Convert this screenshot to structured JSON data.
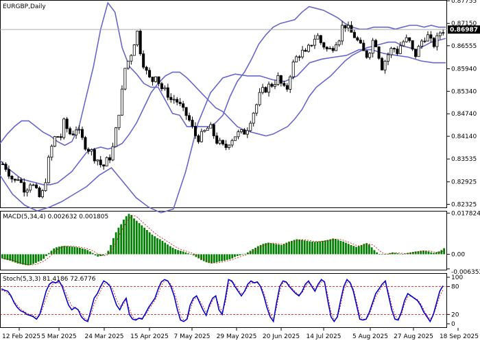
{
  "chart_data": [
    {
      "type": "candlestick",
      "title": "EURGBP,Daily",
      "price_label": "0.86987",
      "ylim": [
        0.82225,
        0.87775
      ],
      "yticks": [
        "0.87755",
        "0.87150",
        "0.86555",
        "0.85940",
        "0.85340",
        "0.84740",
        "0.84140",
        "0.83535",
        "0.82925",
        "0.82325"
      ],
      "xticks": [
        "12 Feb 2025",
        "5 Mar 2025",
        "24 Mar 2025",
        "15 Apr 2025",
        "7 May 2025",
        "29 May 2025",
        "20 Jun 2025",
        "14 Jul 2025",
        "5 Aug 2025",
        "27 Aug 2025",
        "18 Sep 2025"
      ],
      "close_path": [
        0.834,
        0.833,
        0.831,
        0.829,
        0.8305,
        0.8285,
        0.827,
        0.8295,
        0.828,
        0.826,
        0.8245,
        0.829,
        0.835,
        0.8395,
        0.842,
        0.8405,
        0.845,
        0.843,
        0.8415,
        0.844,
        0.842,
        0.84,
        0.8385,
        0.8375,
        0.836,
        0.835,
        0.833,
        0.8345,
        0.836,
        0.839,
        0.846,
        0.852,
        0.86,
        0.862,
        0.865,
        0.87,
        0.864,
        0.86,
        0.857,
        0.856,
        0.8585,
        0.855,
        0.8535,
        0.853,
        0.851,
        0.8515,
        0.85,
        0.848,
        0.847,
        0.845,
        0.842,
        0.841,
        0.8415,
        0.843,
        0.844,
        0.842,
        0.84,
        0.839,
        0.838,
        0.84,
        0.841,
        0.842,
        0.842,
        0.8425,
        0.844,
        0.847,
        0.849,
        0.852,
        0.8535,
        0.8545,
        0.855,
        0.856,
        0.857,
        0.8545,
        0.853,
        0.858,
        0.861,
        0.863,
        0.864,
        0.863,
        0.865,
        0.867,
        0.8685,
        0.8665,
        0.8655,
        0.864,
        0.865,
        0.867,
        0.868,
        0.872,
        0.87,
        0.869,
        0.868,
        0.866,
        0.864,
        0.863,
        0.865,
        0.868,
        0.864,
        0.86,
        0.862,
        0.864,
        0.865,
        0.864,
        0.866,
        0.867,
        0.867,
        0.864,
        0.863,
        0.866,
        0.868,
        0.868,
        0.866,
        0.866,
        0.869,
        0.8699
      ],
      "series": [
        {
          "values": [
            0.835,
            0.833,
            0.8315,
            0.83,
            0.8295,
            0.829,
            0.8285,
            0.8285,
            0.829,
            0.8305,
            0.832,
            0.8345,
            0.837,
            0.838,
            0.8385,
            0.838,
            0.8385,
            0.8395,
            0.842,
            0.845,
            0.849,
            0.853,
            0.8555,
            0.8575,
            0.8585,
            0.8585,
            0.857,
            0.855,
            0.853,
            0.851,
            0.849,
            0.848,
            0.846,
            0.844,
            0.843,
            0.8425,
            0.842,
            0.8415,
            0.842,
            0.843,
            0.844,
            0.846,
            0.8485,
            0.852,
            0.8545,
            0.856,
            0.8575,
            0.8595,
            0.8615,
            0.863,
            0.864,
            0.865,
            0.8655,
            0.866,
            0.8665,
            0.8665,
            0.8655,
            0.865,
            0.8645,
            0.8655,
            0.8665,
            0.867,
            0.8675
          ]
        },
        {
          "values": [
            0.8395,
            0.842,
            0.844,
            0.8455,
            0.8455,
            0.844,
            0.8425,
            0.8415,
            0.84,
            0.839,
            0.84,
            0.844,
            0.852,
            0.86,
            0.87,
            0.877,
            0.8745,
            0.865,
            0.86,
            0.858,
            0.8555,
            0.8545,
            0.8545,
            0.851,
            0.8475,
            0.847,
            0.844,
            0.844,
            0.844,
            0.844,
            0.845,
            0.847,
            0.852,
            0.856,
            0.8585,
            0.862,
            0.866,
            0.8685,
            0.8705,
            0.8715,
            0.872,
            0.8725,
            0.8745,
            0.876,
            0.8755,
            0.875,
            0.874,
            0.873,
            0.8715,
            0.8705,
            0.87,
            0.87,
            0.8705,
            0.8705,
            0.8705,
            0.87,
            0.8705,
            0.871,
            0.871,
            0.8705,
            0.871,
            0.8705,
            0.8705
          ]
        },
        {
          "values": [
            0.831,
            0.826,
            0.823,
            0.8215,
            0.8225,
            0.824,
            0.826,
            0.828,
            0.831,
            0.833,
            0.829,
            0.825,
            0.8225,
            0.821,
            0.822,
            0.832,
            0.845,
            0.853,
            0.857,
            0.858,
            0.8575,
            0.8575,
            0.8565,
            0.856,
            0.8575,
            0.861,
            0.862,
            0.8625,
            0.863,
            0.8645,
            0.8645,
            0.8635,
            0.863,
            0.8625,
            0.8615,
            0.861,
            0.861
          ]
        }
      ]
    },
    {
      "type": "bar",
      "title": "MACD(5,34,4) 0.002632 0.001805",
      "ylim": [
        -0.007,
        0.0188
      ],
      "yticks": [
        "0.017824",
        "0.00",
        "-0.006352"
      ],
      "values": [
        -0.0018,
        -0.0022,
        -0.0025,
        -0.0028,
        -0.0032,
        -0.0036,
        -0.004,
        -0.0042,
        -0.0045,
        -0.0047,
        -0.0048,
        -0.0046,
        -0.0042,
        -0.0038,
        -0.0032,
        -0.0028,
        -0.002,
        -0.0008,
        0.0005,
        0.0015,
        0.0025,
        0.003,
        0.0033,
        0.0035,
        0.0036,
        0.0035,
        0.0034,
        0.0033,
        0.0032,
        0.003,
        0.0028,
        0.0025,
        0.0022,
        0.0018,
        0.0012,
        0.0005,
        -0.0005,
        -0.001,
        -0.0008,
        -0.0005,
        0.0002,
        0.0015,
        0.004,
        0.007,
        0.0095,
        0.0115,
        0.013,
        0.015,
        0.0165,
        0.0175,
        0.017,
        0.0155,
        0.0145,
        0.0135,
        0.0125,
        0.0115,
        0.0105,
        0.0095,
        0.0085,
        0.0078,
        0.007,
        0.0065,
        0.0058,
        0.005,
        0.0042,
        0.0035,
        0.0028,
        0.0022,
        0.0018,
        0.0015,
        0.0012,
        0.0008,
        0.0004,
        0.0,
        -0.0005,
        -0.0012,
        -0.0018,
        -0.0025,
        -0.003,
        -0.0035,
        -0.0038,
        -0.004,
        -0.0038,
        -0.0035,
        -0.0032,
        -0.003,
        -0.0028,
        -0.0025,
        -0.0022,
        -0.0018,
        -0.0012,
        -0.0008,
        -0.0005,
        -0.0002,
        0.0002,
        0.0008,
        0.0015,
        0.0022,
        0.0028,
        0.0035,
        0.004,
        0.0045,
        0.0048,
        0.005,
        0.0048,
        0.0046,
        0.0044,
        0.0042,
        0.004,
        0.0045,
        0.005,
        0.0055,
        0.0058,
        0.0062,
        0.0065,
        0.0064,
        0.0062,
        0.006,
        0.0058,
        0.0056,
        0.0055,
        0.0054,
        0.0055,
        0.0056,
        0.0058,
        0.006,
        0.0062,
        0.0065,
        0.0068,
        0.0066,
        0.0062,
        0.0058,
        0.0055,
        0.005,
        0.0045,
        0.004,
        0.0036,
        0.0032,
        0.0035,
        0.004,
        0.0045,
        0.0048,
        0.0042,
        0.003,
        0.0018,
        0.0008,
        0.0,
        -0.0002,
        0.0,
        0.0002,
        0.0005,
        0.0008,
        0.0006,
        0.0004,
        0.0002,
        0.0,
        0.0003,
        0.0006,
        0.0008,
        0.001,
        0.0012,
        0.0013,
        0.0015,
        0.0016,
        0.0014,
        0.0012,
        0.0008,
        0.0006,
        0.0008,
        0.0012,
        0.0018,
        0.0026
      ]
    },
    {
      "type": "line",
      "title": "Stoch(5,3,3) 81.4186 72.6776",
      "ylim": [
        0,
        100
      ],
      "yticks": [
        "100",
        "80",
        "20",
        "0"
      ],
      "levels": [
        80,
        20
      ],
      "series": [
        {
          "values": [
            75,
            72,
            70,
            60,
            45,
            35,
            28,
            25,
            20,
            18,
            15,
            10,
            20,
            45,
            70,
            85,
            90,
            88,
            92,
            80,
            60,
            40,
            30,
            35,
            30,
            15,
            8,
            5,
            30,
            55,
            65,
            80,
            92,
            88,
            80,
            60,
            40,
            30,
            45,
            55,
            20,
            10,
            8,
            12,
            10,
            22,
            35,
            45,
            55,
            75,
            90,
            95,
            92,
            80,
            60,
            30,
            8,
            5,
            10,
            40,
            55,
            60,
            45,
            30,
            18,
            40,
            55,
            60,
            30,
            20,
            55,
            95,
            92,
            80,
            70,
            60,
            70,
            85,
            92,
            88,
            90,
            80,
            60,
            35,
            15,
            5,
            45,
            80,
            92,
            90,
            80,
            72,
            65,
            60,
            70,
            85,
            92,
            80,
            70,
            85,
            95,
            90,
            50,
            15,
            5,
            15,
            50,
            80,
            95,
            88,
            70,
            40,
            10,
            8,
            10,
            25,
            45,
            65,
            75,
            85,
            92,
            60,
            30,
            10,
            8,
            25,
            50,
            65,
            60,
            55,
            50,
            40,
            25,
            15,
            5,
            20,
            45,
            70,
            81.4
          ]
        },
        {
          "values": [
            72,
            70,
            65,
            58,
            48,
            40,
            32,
            27,
            23,
            20,
            17,
            15,
            18,
            35,
            55,
            72,
            85,
            88,
            88,
            85,
            70,
            52,
            38,
            34,
            31,
            22,
            12,
            8,
            20,
            42,
            58,
            70,
            85,
            88,
            84,
            72,
            52,
            38,
            40,
            50,
            32,
            15,
            10,
            12,
            12,
            18,
            30,
            40,
            50,
            65,
            82,
            92,
            92,
            85,
            70,
            45,
            18,
            8,
            8,
            30,
            50,
            58,
            50,
            38,
            25,
            35,
            50,
            58,
            40,
            25,
            45,
            85,
            92,
            85,
            74,
            65,
            68,
            80,
            88,
            88,
            88,
            82,
            68,
            45,
            22,
            10,
            35,
            70,
            88,
            90,
            84,
            75,
            68,
            62,
            66,
            80,
            88,
            84,
            74,
            80,
            90,
            90,
            62,
            25,
            10,
            12,
            40,
            72,
            88,
            90,
            75,
            48,
            18,
            10,
            10,
            20,
            40,
            58,
            70,
            80,
            88,
            68,
            40,
            18,
            10,
            20,
            42,
            58,
            60,
            56,
            52,
            44,
            30,
            18,
            10,
            18,
            38,
            60,
            72.7
          ]
        }
      ]
    }
  ]
}
